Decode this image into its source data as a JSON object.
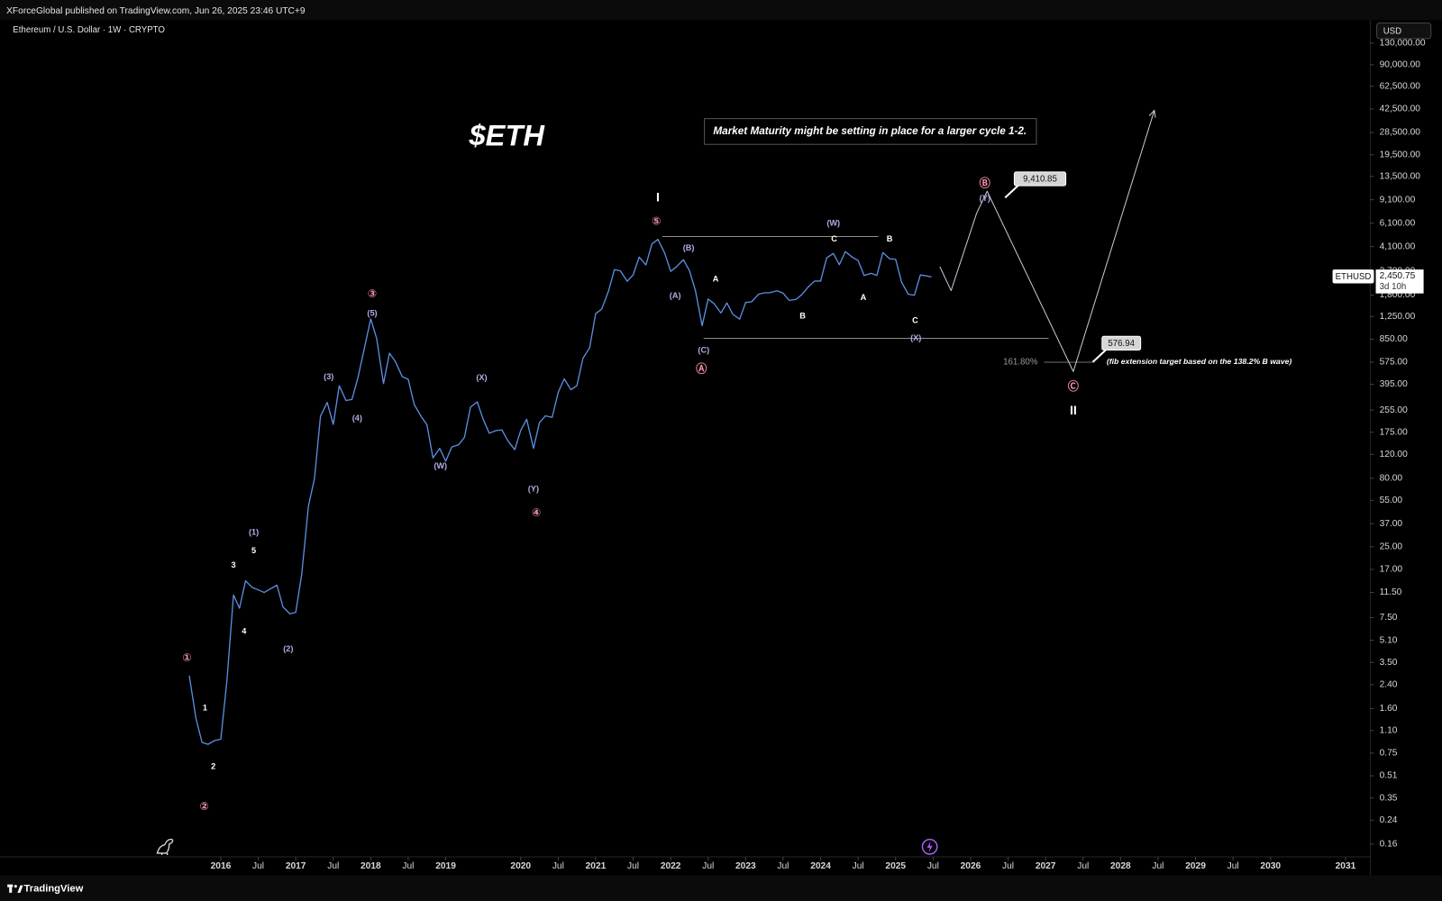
{
  "header": "XForceGlobal published on TradingView.com, Jun 26, 2025 23:46 UTC+9",
  "footer": "TradingView",
  "chart_data": {
    "type": "line",
    "legend": "Ethereum / U.S. Dollar · 1W · CRYPTO",
    "currency": "USD",
    "title": "$ETH",
    "annotation": "Market Maturity might be setting in place for a larger cycle 1-2.",
    "log_scale": true,
    "grid": false,
    "color": "#5b8fe0",
    "xlim": [
      2013.154,
      2031.33
    ],
    "ylim": [
      0.1286,
      192000
    ],
    "xticks": [
      2016,
      {
        "value": 2016.5,
        "label": "Jul"
      },
      2017,
      {
        "value": 2017.5,
        "label": "Jul"
      },
      2018,
      {
        "value": 2018.5,
        "label": "Jul"
      },
      2019,
      2020,
      {
        "value": 2020.5,
        "label": "Jul"
      },
      2021,
      {
        "value": 2021.5,
        "label": "Jul"
      },
      2022,
      {
        "value": 2022.5,
        "label": "Jul"
      },
      2023,
      {
        "value": 2023.5,
        "label": "Jul"
      },
      2024,
      {
        "value": 2024.5,
        "label": "Jul"
      },
      2025,
      {
        "value": 2025.5,
        "label": "Jul"
      },
      2026,
      {
        "value": 2026.5,
        "label": "Jul"
      },
      2027,
      {
        "value": 2027.5,
        "label": "Jul"
      },
      2028,
      {
        "value": 2028.5,
        "label": "Jul"
      },
      2029,
      {
        "value": 2029.5,
        "label": "Jul"
      },
      2030,
      2031
    ],
    "yticks": [
      {
        "value": 130000,
        "label": "130,000.00"
      },
      {
        "value": 90000,
        "label": "90,000.00"
      },
      {
        "value": 62500,
        "label": "62,500.00"
      },
      {
        "value": 42500,
        "label": "42,500.00"
      },
      {
        "value": 28500,
        "label": "28,500.00"
      },
      {
        "value": 19500,
        "label": "19,500.00"
      },
      {
        "value": 13500,
        "label": "13,500.00"
      },
      {
        "value": 9100,
        "label": "9,100.00"
      },
      {
        "value": 6100,
        "label": "6,100.00"
      },
      {
        "value": 4100,
        "label": "4,100.00"
      },
      {
        "value": 2700,
        "label": "2,700.00"
      },
      {
        "value": 1800,
        "label": "1,800.00"
      },
      {
        "value": 1250,
        "label": "1,250.00"
      },
      {
        "value": 850,
        "label": "850.00"
      },
      {
        "value": 575,
        "label": "575.00"
      },
      {
        "value": 395,
        "label": "395.00"
      },
      {
        "value": 255,
        "label": "255.00"
      },
      {
        "value": 175,
        "label": "175.00"
      },
      {
        "value": 120,
        "label": "120.00"
      },
      {
        "value": 80,
        "label": "80.00"
      },
      {
        "value": 55,
        "label": "55.00"
      },
      {
        "value": 37,
        "label": "37.00"
      },
      {
        "value": 25,
        "label": "25.00"
      },
      {
        "value": 17,
        "label": "17.00"
      },
      {
        "value": 11.5,
        "label": "11.50"
      },
      {
        "value": 7.5,
        "label": "7.50"
      },
      {
        "value": 5.1,
        "label": "5.10"
      },
      {
        "value": 3.5,
        "label": "3.50"
      },
      {
        "value": 2.4,
        "label": "2.40"
      },
      {
        "value": 1.6,
        "label": "1.60"
      },
      {
        "value": 1.1,
        "label": "1.10"
      },
      {
        "value": 0.75,
        "label": "0.75"
      },
      {
        "value": 0.51,
        "label": "0.51"
      },
      {
        "value": 0.35,
        "label": "0.35"
      },
      {
        "value": 0.24,
        "label": "0.24"
      },
      {
        "value": 0.16,
        "label": "0.16"
      }
    ],
    "x": [
      2015.58,
      2015.67,
      2015.75,
      2015.83,
      2015.92,
      2016,
      2016.08,
      2016.17,
      2016.25,
      2016.33,
      2016.42,
      2016.5,
      2016.58,
      2016.67,
      2016.75,
      2016.83,
      2016.92,
      2017,
      2017.08,
      2017.17,
      2017.25,
      2017.33,
      2017.42,
      2017.5,
      2017.58,
      2017.67,
      2017.75,
      2017.83,
      2017.92,
      2018,
      2018.08,
      2018.17,
      2018.25,
      2018.33,
      2018.42,
      2018.5,
      2018.58,
      2018.67,
      2018.75,
      2018.83,
      2018.92,
      2019,
      2019.08,
      2019.17,
      2019.25,
      2019.33,
      2019.42,
      2019.5,
      2019.58,
      2019.67,
      2019.75,
      2019.83,
      2019.92,
      2020,
      2020.08,
      2020.17,
      2020.25,
      2020.33,
      2020.42,
      2020.5,
      2020.58,
      2020.67,
      2020.75,
      2020.83,
      2020.92,
      2021,
      2021.08,
      2021.17,
      2021.25,
      2021.33,
      2021.42,
      2021.5,
      2021.58,
      2021.67,
      2021.75,
      2021.83,
      2021.92,
      2022,
      2022.08,
      2022.17,
      2022.25,
      2022.33,
      2022.42,
      2022.5,
      2022.58,
      2022.67,
      2022.75,
      2022.83,
      2022.92,
      2023,
      2023.08,
      2023.17,
      2023.25,
      2023.33,
      2023.42,
      2023.5,
      2023.58,
      2023.67,
      2023.75,
      2023.83,
      2023.92,
      2024,
      2024.08,
      2024.17,
      2024.25,
      2024.33,
      2024.42,
      2024.5,
      2024.58,
      2024.67,
      2024.75,
      2024.83,
      2024.92,
      2025,
      2025.08,
      2025.17,
      2025.25,
      2025.33,
      2025.42,
      2025.48
    ],
    "values": [
      2.8,
      1.35,
      0.9,
      0.87,
      0.93,
      0.95,
      2.5,
      11,
      8.8,
      14,
      12.5,
      12,
      11.5,
      12.3,
      13,
      9,
      8,
      8.2,
      15.7,
      50,
      80,
      230,
      290,
      200,
      385,
      300,
      305,
      445,
      750,
      1200,
      860,
      400,
      670,
      580,
      450,
      430,
      280,
      230,
      198,
      113,
      133,
      107,
      136,
      141,
      160,
      268,
      293,
      218,
      172,
      180,
      182,
      151,
      130,
      180,
      218,
      133,
      206,
      231,
      225,
      345,
      433,
      360,
      386,
      615,
      737,
      1314,
      1417,
      1919,
      2773,
      2714,
      2275,
      2536,
      3433,
      3001,
      4288,
      4631,
      3683,
      2689,
      2922,
      3282,
      2730,
      1942,
      1070,
      1680,
      1553,
      1328,
      1573,
      1296,
      1196,
      1586,
      1605,
      1822,
      1870,
      1874,
      1934,
      1857,
      1645,
      1671,
      1815,
      2052,
      2282,
      2283,
      3384,
      3647,
      3014,
      3762,
      3434,
      3232,
      2513,
      2602,
      2516,
      3705,
      3332,
      3300,
      2237,
      1822,
      1794,
      2530,
      2486,
      2450.75
    ],
    "last": {
      "value": 2450.75,
      "label": "2,450.75",
      "symbol": "ETHUSD",
      "countdown": "3d 10h"
    },
    "projection": {
      "color": "#c9c9d9",
      "x": [
        2025.59,
        2025.74,
        2026.08,
        2026.22,
        2027.37,
        2028.45
      ],
      "values": [
        2912,
        1941,
        7210,
        10500,
        491,
        41500
      ]
    },
    "hlines": [
      {
        "x": [
          2021.89,
          2024.77
        ],
        "value": 4875
      },
      {
        "x": [
          2022.44,
          2027.04
        ],
        "value": 861
      }
    ],
    "fib": {
      "label": "161.80%",
      "x": [
        2026.98,
        2027.65
      ],
      "value": 575,
      "note": "(fib extension target based on the 138.2% B wave)"
    },
    "targets": [
      {
        "x": 2026.46,
        "value": 9410.85,
        "label": "9,410.85"
      },
      {
        "x": 2027.63,
        "value": 576.94,
        "label": "576.94"
      }
    ],
    "waves": [
      {
        "text": "①",
        "x": 2015.55,
        "y": 3.75,
        "color": "#ef8fa3"
      },
      {
        "text": "②",
        "x": 2015.78,
        "y": 0.3,
        "color": "#ef8fa3"
      },
      {
        "text": "③",
        "x": 2018.02,
        "y": 1824,
        "color": "#ef8fa3"
      },
      {
        "text": "④",
        "x": 2020.21,
        "y": 44.3,
        "color": "#ef8fa3"
      },
      {
        "text": "⑤",
        "x": 2021.81,
        "y": 6270,
        "color": "#ef8fa3"
      },
      {
        "text": "Ⓐ",
        "x": 2022.41,
        "y": 507,
        "color": "#ef8fa3"
      },
      {
        "text": "Ⓑ",
        "x": 2026.19,
        "y": 11880,
        "color": "#ef8fa3"
      },
      {
        "text": "Ⓒ",
        "x": 2027.37,
        "y": 377,
        "color": "#ef8fa3"
      },
      {
        "text": "I",
        "x": 2021.83,
        "y": 9400,
        "color": "#ffffff"
      },
      {
        "text": "II",
        "x": 2027.37,
        "y": 251,
        "color": "#ffffff"
      },
      {
        "text": "(1)",
        "x": 2016.44,
        "y": 31.9,
        "color": "#b3abe4"
      },
      {
        "text": "(2)",
        "x": 2016.9,
        "y": 4.39,
        "color": "#b3abe4"
      },
      {
        "text": "(3)",
        "x": 2017.44,
        "y": 447,
        "color": "#b3abe4"
      },
      {
        "text": "(4)",
        "x": 2017.82,
        "y": 221,
        "color": "#b3abe4"
      },
      {
        "text": "(5)",
        "x": 2018.02,
        "y": 1315,
        "color": "#b3abe4"
      },
      {
        "text": "(W)",
        "x": 2018.93,
        "y": 98,
        "color": "#b3abe4"
      },
      {
        "text": "(X)",
        "x": 2019.48,
        "y": 440,
        "color": "#b3abe4"
      },
      {
        "text": "(Y)",
        "x": 2020.17,
        "y": 66.5,
        "color": "#b3abe4"
      },
      {
        "text": "(A)",
        "x": 2022.06,
        "y": 1767,
        "color": "#b3abe4"
      },
      {
        "text": "(B)",
        "x": 2022.24,
        "y": 3981,
        "color": "#b3abe4"
      },
      {
        "text": "(C)",
        "x": 2022.44,
        "y": 703,
        "color": "#b3abe4"
      },
      {
        "text": "(W)",
        "x": 2024.17,
        "y": 6070,
        "color": "#b3abe4"
      },
      {
        "text": "(X)",
        "x": 2025.27,
        "y": 861,
        "color": "#b3abe4"
      },
      {
        "text": "(Y)",
        "x": 2026.19,
        "y": 9270,
        "color": "#b3abe4"
      },
      {
        "text": "1",
        "x": 2015.79,
        "y": 1.61,
        "color": "#ffffff"
      },
      {
        "text": "2",
        "x": 2015.9,
        "y": 0.594,
        "color": "#ffffff"
      },
      {
        "text": "3",
        "x": 2016.17,
        "y": 18.2,
        "color": "#ffffff"
      },
      {
        "text": "4",
        "x": 2016.31,
        "y": 5.9,
        "color": "#ffffff"
      },
      {
        "text": "5",
        "x": 2016.44,
        "y": 23.3,
        "color": "#ffffff"
      },
      {
        "text": "A",
        "x": 2022.6,
        "y": 2344,
        "color": "#ffffff"
      },
      {
        "text": "B",
        "x": 2023.76,
        "y": 1253,
        "color": "#ffffff"
      },
      {
        "text": "C",
        "x": 2024.18,
        "y": 4656,
        "color": "#ffffff"
      },
      {
        "text": "A",
        "x": 2024.57,
        "y": 1714,
        "color": "#ffffff"
      },
      {
        "text": "B",
        "x": 2024.92,
        "y": 4656,
        "color": "#ffffff"
      },
      {
        "text": "C",
        "x": 2025.26,
        "y": 1159,
        "color": "#ffffff"
      }
    ]
  }
}
